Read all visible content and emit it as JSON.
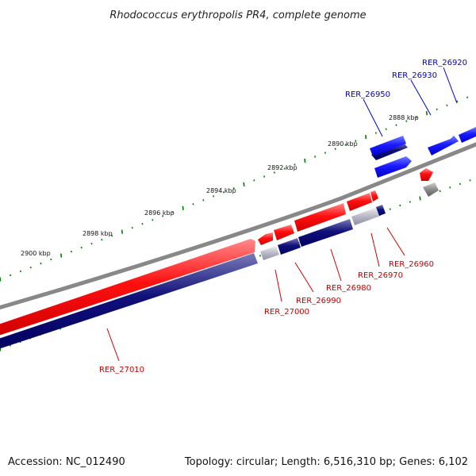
{
  "title": "Rhodococcus erythropolis PR4, complete genome",
  "footer": {
    "accession": "Accession: NC_012490",
    "stats": "Topology: circular; Length: 6,516,310 bp; Genes: 6,102"
  },
  "kbp_labels": [
    "2888 kbp",
    "2890 kbp",
    "2892 kbp",
    "2894 kbp",
    "2896 kbp",
    "2898 kbp",
    "2900 kbp"
  ],
  "genes_forward": [
    "RER_26920",
    "RER_26930",
    "RER_26950"
  ],
  "genes_reverse": [
    "RER_26960",
    "RER_26970",
    "RER_26980",
    "RER_26990",
    "RER_27000",
    "RER_27010"
  ],
  "colors": {
    "forward_cds": "#0000ff",
    "reverse_cds": "#ff0000",
    "dark_strand": "#000080",
    "backbone": "#808080",
    "ticks": "#008000",
    "forward_label": "#0000cc",
    "reverse_label": "#cc0000"
  }
}
